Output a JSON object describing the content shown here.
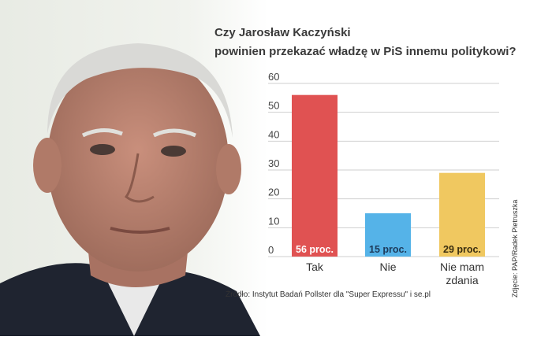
{
  "chart_data": {
    "type": "bar",
    "title_line1": "Czy Jarosław Kaczyński",
    "title_line2": "powinien przekazać władzę w PiS innemu politykowi?",
    "categories": [
      "Tak",
      "Nie",
      "Nie mam zdania"
    ],
    "category_lines": [
      [
        "Tak"
      ],
      [
        "Nie"
      ],
      [
        "Nie mam",
        "zdania"
      ]
    ],
    "values": [
      56,
      15,
      29
    ],
    "data_labels": [
      "56 proc.",
      "15 proc.",
      "29 proc."
    ],
    "bar_colors": [
      "#e05252",
      "#55b3e8",
      "#f0c860"
    ],
    "ylim": [
      0,
      60
    ],
    "yticks": [
      0,
      10,
      20,
      30,
      40,
      50,
      60
    ],
    "grid": true
  },
  "source": "Źródło: Instytut Badań Pollster dla \"Super Expressu\" i se.pl",
  "credit": "Zdjęcie: PAP/Radek Pietruszka"
}
